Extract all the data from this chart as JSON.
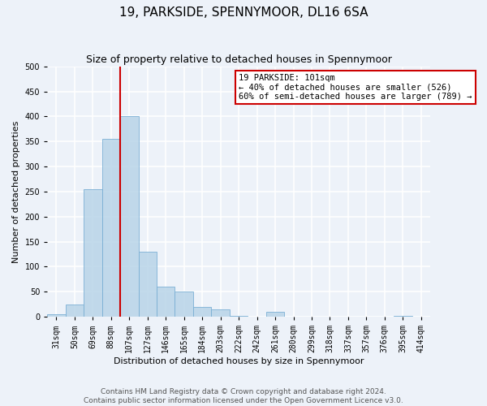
{
  "title": "19, PARKSIDE, SPENNYMOOR, DL16 6SA",
  "subtitle": "Size of property relative to detached houses in Spennymoor",
  "xlabel": "Distribution of detached houses by size in Spennymoor",
  "ylabel": "Number of detached properties",
  "bar_values": [
    5,
    25,
    255,
    355,
    400,
    130,
    60,
    50,
    20,
    15,
    2,
    0,
    10,
    0,
    0,
    0,
    0,
    0,
    0,
    2,
    0
  ],
  "bin_labels": [
    "31sqm",
    "50sqm",
    "69sqm",
    "88sqm",
    "107sqm",
    "127sqm",
    "146sqm",
    "165sqm",
    "184sqm",
    "203sqm",
    "222sqm",
    "242sqm",
    "261sqm",
    "280sqm",
    "299sqm",
    "318sqm",
    "337sqm",
    "357sqm",
    "376sqm",
    "395sqm",
    "414sqm"
  ],
  "bar_color": "#b8d4e8",
  "bar_edge_color": "#7aafd4",
  "bar_alpha": 0.85,
  "vline_position": 3.5,
  "vline_color": "#cc0000",
  "annotation_title": "19 PARKSIDE: 101sqm",
  "annotation_line1": "← 40% of detached houses are smaller (526)",
  "annotation_line2": "60% of semi-detached houses are larger (789) →",
  "annotation_box_color": "white",
  "annotation_box_edge_color": "#cc0000",
  "ylim": [
    0,
    500
  ],
  "yticks": [
    0,
    50,
    100,
    150,
    200,
    250,
    300,
    350,
    400,
    450,
    500
  ],
  "footer_line1": "Contains HM Land Registry data © Crown copyright and database right 2024.",
  "footer_line2": "Contains public sector information licensed under the Open Government Licence v3.0.",
  "background_color": "#edf2f9",
  "grid_color": "white",
  "title_fontsize": 11,
  "subtitle_fontsize": 9,
  "axis_label_fontsize": 8,
  "tick_fontsize": 7,
  "annotation_fontsize": 7.5,
  "footer_fontsize": 6.5
}
